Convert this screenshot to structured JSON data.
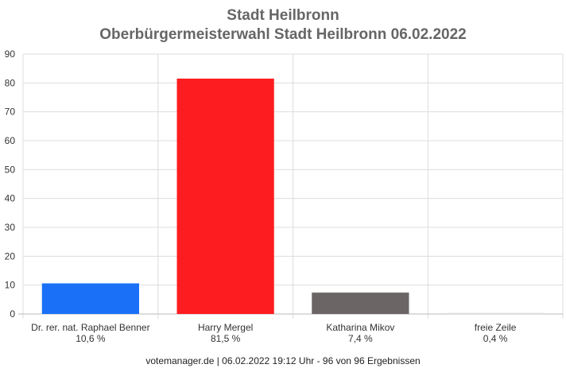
{
  "chart_data": {
    "type": "bar",
    "title": "Stadt Heilbronn",
    "subtitle": "Oberbürgermeisterwahl Stadt Heilbronn 06.02.2022",
    "categories": [
      "Dr. rer. nat. Raphael Benner",
      "Harry Mergel",
      "Katharina Mikov",
      "freie Zeile"
    ],
    "value_labels": [
      "10,6 %",
      "81,5 %",
      "7,4 %",
      "0,4 %"
    ],
    "values": [
      10.6,
      81.5,
      7.4,
      0.4
    ],
    "colors": [
      "#1a71f7",
      "#fd1c1f",
      "#6b6565",
      "#e2e2e2"
    ],
    "ylim": [
      0,
      90
    ],
    "yticks": [
      "0",
      "10",
      "20",
      "30",
      "40",
      "50",
      "60",
      "70",
      "80",
      "90"
    ],
    "grid": true,
    "legend": "none"
  },
  "footer": "votemanager.de | 06.02.2022 19:12 Uhr - 96 von 96 Ergebnissen"
}
